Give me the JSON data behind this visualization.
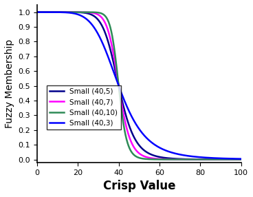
{
  "title": "",
  "xlabel": "Crisp Value",
  "ylabel": "Fuzzy Membership",
  "xlim": [
    0,
    100
  ],
  "ylim": [
    -0.02,
    1.05
  ],
  "xticks": [
    0,
    20,
    40,
    60,
    80,
    100
  ],
  "yticks": [
    0,
    0.1,
    0.2,
    0.3,
    0.4,
    0.5,
    0.6,
    0.7,
    0.8,
    0.9,
    1
  ],
  "series": [
    {
      "label": "Small (40,5)",
      "a": 40,
      "b": 5,
      "color": "#00008B",
      "lw": 1.8
    },
    {
      "label": "Small (40,7)",
      "a": 40,
      "b": 7,
      "color": "#FF00FF",
      "lw": 1.8
    },
    {
      "label": "Small (40,10)",
      "a": 40,
      "b": 10,
      "color": "#2E8B57",
      "lw": 1.8
    },
    {
      "label": "Small (40,3)",
      "a": 40,
      "b": 3,
      "color": "#0000FF",
      "lw": 1.8
    }
  ],
  "legend_loc": "center left",
  "legend_fontsize": 7.5,
  "axis_fontsize": 10,
  "xlabel_fontsize": 12,
  "tick_fontsize": 8,
  "background_color": "#FFFFFF"
}
